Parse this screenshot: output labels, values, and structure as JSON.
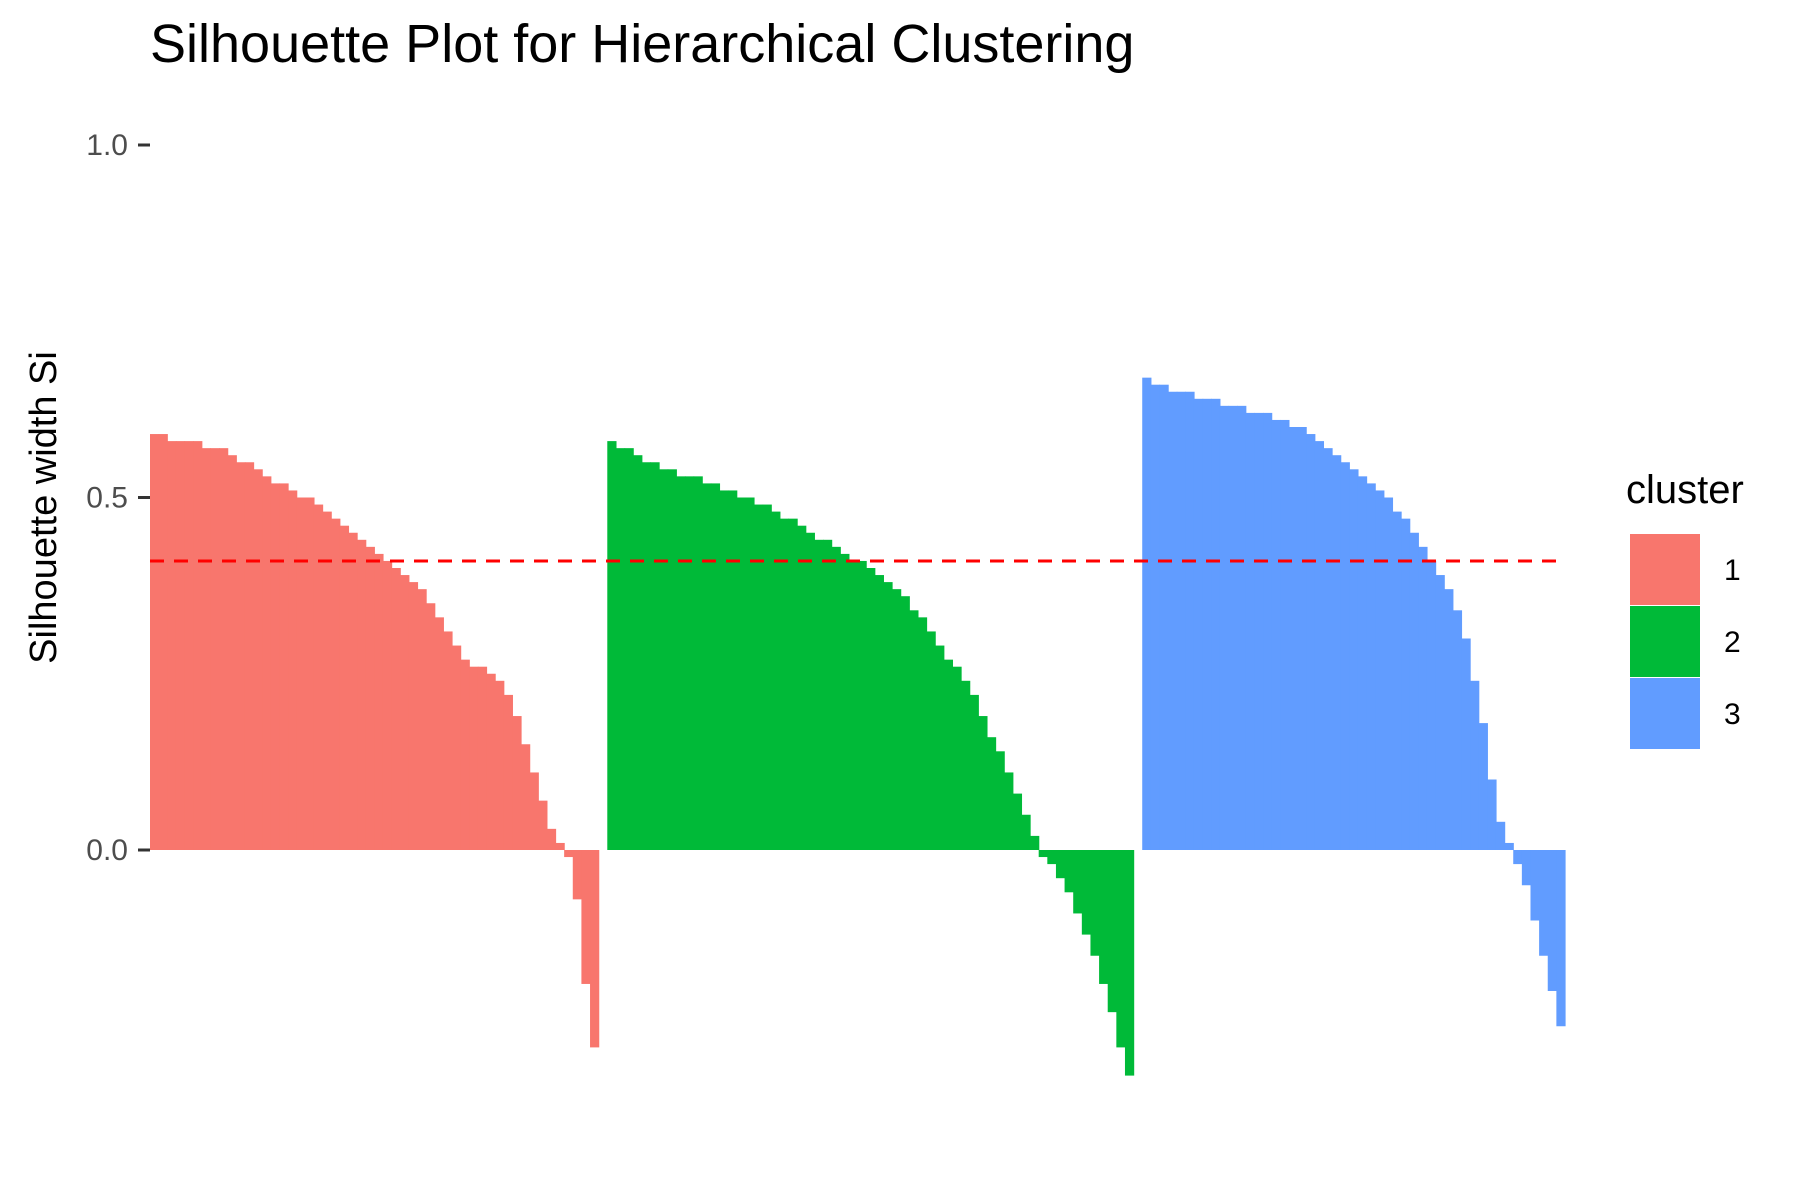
{
  "chart_data": {
    "type": "bar",
    "title": "Silhouette Plot for Hierarchical Clustering",
    "xlabel": "",
    "ylabel": "Silhouette width Si",
    "ylim": [
      -0.32,
      1.0
    ],
    "y_ticks": [
      "0.0",
      "0.5",
      "1.0"
    ],
    "y_tick_values": [
      0.0,
      0.5,
      1.0
    ],
    "grid": false,
    "legend_placement": "right",
    "legend_title": "cluster",
    "reference_line": {
      "value": 0.41,
      "color": "#ff0000",
      "style": "dashed"
    },
    "series": [
      {
        "name": "1",
        "color": "#F8766D",
        "values": [
          0.59,
          0.59,
          0.58,
          0.58,
          0.58,
          0.58,
          0.57,
          0.57,
          0.57,
          0.56,
          0.55,
          0.55,
          0.54,
          0.53,
          0.52,
          0.52,
          0.51,
          0.5,
          0.5,
          0.49,
          0.48,
          0.47,
          0.46,
          0.45,
          0.44,
          0.43,
          0.42,
          0.41,
          0.4,
          0.39,
          0.38,
          0.37,
          0.35,
          0.33,
          0.31,
          0.29,
          0.27,
          0.26,
          0.26,
          0.25,
          0.24,
          0.22,
          0.19,
          0.15,
          0.11,
          0.07,
          0.03,
          0.01,
          -0.01,
          -0.07,
          -0.19,
          -0.28
        ]
      },
      {
        "name": "2",
        "color": "#00BA38",
        "values": [
          0.58,
          0.57,
          0.57,
          0.56,
          0.55,
          0.55,
          0.54,
          0.54,
          0.53,
          0.53,
          0.53,
          0.52,
          0.52,
          0.51,
          0.51,
          0.5,
          0.5,
          0.49,
          0.49,
          0.48,
          0.47,
          0.47,
          0.46,
          0.45,
          0.44,
          0.44,
          0.43,
          0.42,
          0.41,
          0.41,
          0.4,
          0.39,
          0.38,
          0.37,
          0.36,
          0.34,
          0.33,
          0.31,
          0.29,
          0.27,
          0.26,
          0.24,
          0.22,
          0.19,
          0.16,
          0.14,
          0.11,
          0.08,
          0.05,
          0.02,
          -0.01,
          -0.02,
          -0.04,
          -0.06,
          -0.09,
          -0.12,
          -0.15,
          -0.19,
          -0.23,
          -0.28,
          -0.32
        ]
      },
      {
        "name": "3",
        "color": "#619CFF",
        "values": [
          0.67,
          0.66,
          0.66,
          0.65,
          0.65,
          0.65,
          0.64,
          0.64,
          0.64,
          0.63,
          0.63,
          0.63,
          0.62,
          0.62,
          0.62,
          0.61,
          0.61,
          0.6,
          0.6,
          0.59,
          0.58,
          0.57,
          0.56,
          0.55,
          0.54,
          0.53,
          0.52,
          0.51,
          0.5,
          0.48,
          0.47,
          0.45,
          0.43,
          0.41,
          0.39,
          0.37,
          0.34,
          0.3,
          0.24,
          0.18,
          0.1,
          0.04,
          0.01,
          -0.02,
          -0.05,
          -0.1,
          -0.15,
          -0.2,
          -0.25
        ]
      }
    ]
  }
}
